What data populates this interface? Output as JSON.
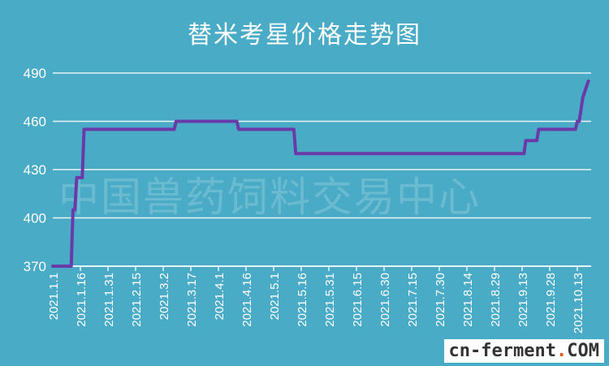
{
  "chart_data": {
    "type": "line",
    "title": "替米考星价格走势图",
    "xlabel": "",
    "ylabel": "",
    "ylim": [
      370,
      490
    ],
    "yticks": [
      370,
      400,
      430,
      460,
      490
    ],
    "xlim": [
      "2021-01-01",
      "2021-10-19"
    ],
    "xtick_labels": [
      "2021.1.1",
      "2021.1.16",
      "2021.1.31",
      "2021.2.15",
      "2021.3.2",
      "2021.3.17",
      "2021.4.1",
      "2021.4.16",
      "2021.5.1",
      "2021.5.16",
      "2021.5.31",
      "2021.6.15",
      "2021.6.30",
      "2021.7.15",
      "2021.7.30",
      "2021.8.14",
      "2021.8.29",
      "2021.9.13",
      "2021.9.28",
      "2021.10.13"
    ],
    "grid": true,
    "line_color": "#6a3aa8",
    "background": "#4aabc6",
    "series": [
      {
        "points": [
          [
            "2021-01-01",
            370
          ],
          [
            "2021-01-11",
            370
          ],
          [
            "2021-01-12",
            405
          ],
          [
            "2021-01-13",
            405
          ],
          [
            "2021-01-14",
            425
          ],
          [
            "2021-01-17",
            425
          ],
          [
            "2021-01-18",
            455
          ],
          [
            "2021-03-08",
            455
          ],
          [
            "2021-03-09",
            460
          ],
          [
            "2021-04-11",
            460
          ],
          [
            "2021-04-12",
            455
          ],
          [
            "2021-05-12",
            455
          ],
          [
            "2021-05-13",
            440
          ],
          [
            "2021-09-14",
            440
          ],
          [
            "2021-09-15",
            448
          ],
          [
            "2021-09-21",
            448
          ],
          [
            "2021-09-22",
            455
          ],
          [
            "2021-10-12",
            455
          ],
          [
            "2021-10-13",
            460
          ],
          [
            "2021-10-14",
            460
          ],
          [
            "2021-10-16",
            475
          ],
          [
            "2021-10-19",
            485
          ]
        ]
      }
    ]
  },
  "watermark": "中国兽药饲料交易中心",
  "logo": {
    "main": "cn-ferment",
    "dot": ".",
    "suffix": "COM"
  }
}
